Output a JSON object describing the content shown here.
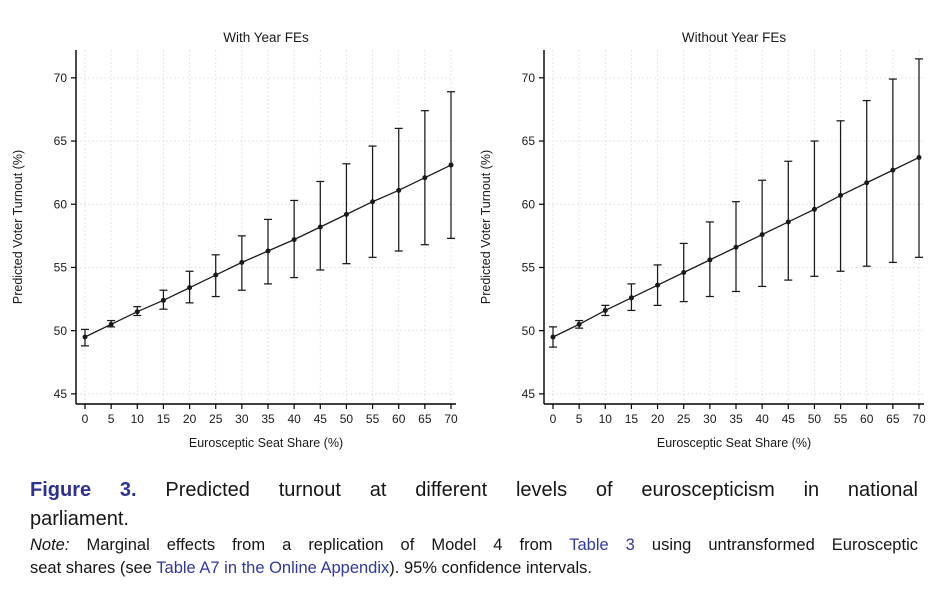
{
  "colors": {
    "accent_figure_label": "#2d3192",
    "link": "#3138a0",
    "series": "#1a1a1a",
    "grid": "#dadada",
    "axis": "#000000"
  },
  "caption": {
    "label": "Figure 3.",
    "title_line1": "Predicted turnout at different levels of euroscepticism in national",
    "title_line2": "parliament.",
    "note_label": "Note:",
    "note1_text": " Marginal effects from a replication of Model 4 from ",
    "note1_link": "Table 3",
    "note1_tail": " using untransformed Eurosceptic",
    "note2_text": "seat shares (see ",
    "note2_link": "Table A7 in the Online Appendix",
    "note2_tail": "). 95% confidence intervals."
  },
  "chart_data": [
    {
      "type": "line",
      "title": "With Year FEs",
      "xlabel": "Eurosceptic Seat Share (%)",
      "ylabel": "Predicted Voter Turnout (%)",
      "x": [
        0,
        5,
        10,
        15,
        20,
        25,
        30,
        35,
        40,
        45,
        50,
        55,
        60,
        65,
        70
      ],
      "series": [
        {
          "name": "Predicted voter turnout",
          "values": [
            49.5,
            50.5,
            51.5,
            52.4,
            53.4,
            54.4,
            55.4,
            56.3,
            57.2,
            58.2,
            59.2,
            60.2,
            61.1,
            62.1,
            63.1
          ]
        }
      ],
      "ci_low": [
        48.8,
        50.3,
        51.2,
        51.7,
        52.2,
        52.7,
        53.2,
        53.7,
        54.2,
        54.8,
        55.3,
        55.8,
        56.3,
        56.8,
        57.3
      ],
      "ci_high": [
        50.1,
        50.8,
        51.9,
        53.2,
        54.7,
        56.0,
        57.5,
        58.8,
        60.3,
        61.8,
        63.2,
        64.6,
        66.0,
        67.4,
        68.9
      ],
      "error_bars": "95% confidence intervals",
      "xticks": [
        0,
        5,
        10,
        15,
        20,
        25,
        30,
        35,
        40,
        45,
        50,
        55,
        60,
        65,
        70
      ],
      "yticks": [
        45,
        50,
        55,
        60,
        65,
        70
      ],
      "ylim": [
        44.2,
        72.2
      ],
      "grid": true,
      "legend": false
    },
    {
      "type": "line",
      "title": "Without Year FEs",
      "xlabel": "Eurosceptic Seat Share (%)",
      "ylabel": "Predicted Voter Turnout (%)",
      "x": [
        0,
        5,
        10,
        15,
        20,
        25,
        30,
        35,
        40,
        45,
        50,
        55,
        60,
        65,
        70
      ],
      "series": [
        {
          "name": "Predicted voter turnout",
          "values": [
            49.5,
            50.5,
            51.6,
            52.6,
            53.6,
            54.6,
            55.6,
            56.6,
            57.6,
            58.6,
            59.6,
            60.7,
            61.7,
            62.7,
            63.7
          ]
        }
      ],
      "ci_low": [
        48.7,
        50.2,
        51.2,
        51.6,
        52.0,
        52.3,
        52.7,
        53.1,
        53.5,
        54.0,
        54.3,
        54.7,
        55.1,
        55.4,
        55.8
      ],
      "ci_high": [
        50.3,
        50.8,
        52.0,
        53.7,
        55.2,
        56.9,
        58.6,
        60.2,
        61.9,
        63.4,
        65.0,
        66.6,
        68.2,
        69.9,
        71.5
      ],
      "error_bars": "95% confidence intervals",
      "xticks": [
        0,
        5,
        10,
        15,
        20,
        25,
        30,
        35,
        40,
        45,
        50,
        55,
        60,
        65,
        70
      ],
      "yticks": [
        45,
        50,
        55,
        60,
        65,
        70
      ],
      "ylim": [
        44.2,
        72.2
      ],
      "grid": true,
      "legend": false
    }
  ]
}
